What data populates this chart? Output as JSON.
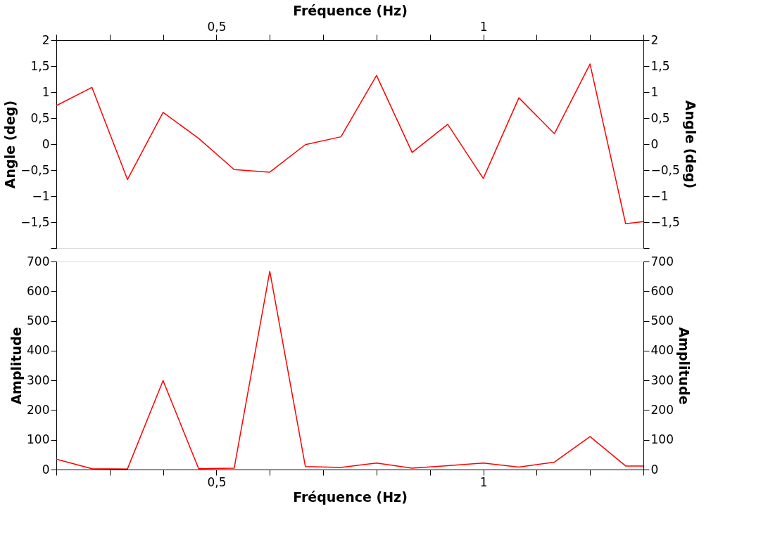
{
  "chart_data": [
    {
      "type": "line",
      "xlabel": "Fréquence (Hz)",
      "ylabel": "Angle (deg)",
      "y2label": "Angle (deg)",
      "x": [
        0.2,
        0.2667,
        0.3333,
        0.4,
        0.4667,
        0.5333,
        0.6,
        0.6667,
        0.7333,
        0.8,
        0.8667,
        0.9333,
        1.0,
        1.0667,
        1.1333,
        1.2,
        1.2667,
        1.3
      ],
      "series": [
        {
          "color": "#ff0000",
          "values": [
            0.74,
            1.09,
            -0.68,
            0.61,
            0.11,
            -0.49,
            -0.54,
            -0.01,
            0.14,
            1.32,
            -0.16,
            0.38,
            -0.66,
            0.89,
            0.2,
            1.54,
            -1.53,
            -1.49
          ]
        }
      ],
      "xlim": [
        0.2,
        1.3
      ],
      "xticks": [
        {
          "value": 0.2,
          "label": null
        },
        {
          "value": 0.3,
          "label": null
        },
        {
          "value": 0.4,
          "label": null
        },
        {
          "value": 0.5,
          "label": "0,5"
        },
        {
          "value": 0.6,
          "label": null
        },
        {
          "value": 0.7,
          "label": null
        },
        {
          "value": 0.8,
          "label": null
        },
        {
          "value": 0.9,
          "label": null
        },
        1,
        {
          "value": 1.1,
          "label": null
        },
        {
          "value": 1.2,
          "label": null
        },
        {
          "value": 1.3,
          "label": null
        }
      ],
      "ylim": [
        -2,
        2
      ],
      "yticks": [
        {
          "value": -2,
          "label": null
        },
        {
          "value": -1.5,
          "label": "−1,5"
        },
        {
          "value": -1,
          "label": "−1"
        },
        {
          "value": -0.5,
          "label": "−0,5"
        },
        0,
        {
          "value": 0.5,
          "label": "0,5"
        },
        1,
        {
          "value": 1.5,
          "label": "1,5"
        },
        2
      ],
      "y2lim": [
        -2,
        2
      ],
      "y2ticks": [
        {
          "value": -2,
          "label": null
        },
        {
          "value": -1.5,
          "label": "−1,5"
        },
        {
          "value": -1,
          "label": "−1"
        },
        {
          "value": -0.5,
          "label": "−0,5"
        },
        0,
        {
          "value": 0.5,
          "label": "0,5"
        },
        1,
        {
          "value": 1.5,
          "label": "1,5"
        },
        2
      ],
      "grid": false
    },
    {
      "type": "line",
      "xlabel": "Fréquence (Hz)",
      "ylabel": "Amplitude",
      "y2label": "Amplitude",
      "x": [
        0.2,
        0.2667,
        0.3333,
        0.4,
        0.4667,
        0.5333,
        0.6,
        0.6667,
        0.7333,
        0.8,
        0.8667,
        0.9333,
        1.0,
        1.0667,
        1.1333,
        1.2,
        1.2667,
        1.3
      ],
      "series": [
        {
          "color": "#ff0000",
          "values": [
            35,
            3,
            2,
            299,
            3,
            5,
            667,
            10,
            7,
            22,
            5,
            13,
            22,
            8,
            25,
            111,
            12,
            12
          ]
        }
      ],
      "xlim": [
        0.2,
        1.3
      ],
      "xticks": [
        {
          "value": 0.2,
          "label": null
        },
        {
          "value": 0.3,
          "label": null
        },
        {
          "value": 0.4,
          "label": null
        },
        {
          "value": 0.5,
          "label": "0,5"
        },
        {
          "value": 0.6,
          "label": null
        },
        {
          "value": 0.7,
          "label": null
        },
        {
          "value": 0.8,
          "label": null
        },
        {
          "value": 0.9,
          "label": null
        },
        1,
        {
          "value": 1.1,
          "label": null
        },
        {
          "value": 1.2,
          "label": null
        },
        {
          "value": 1.3,
          "label": null
        }
      ],
      "ylim": [
        0,
        700
      ],
      "yticks": [
        0,
        100,
        200,
        300,
        400,
        500,
        600,
        700
      ],
      "y2lim": [
        0,
        700
      ],
      "y2ticks": [
        0,
        100,
        200,
        300,
        400,
        500,
        600,
        700
      ],
      "grid": false
    }
  ]
}
